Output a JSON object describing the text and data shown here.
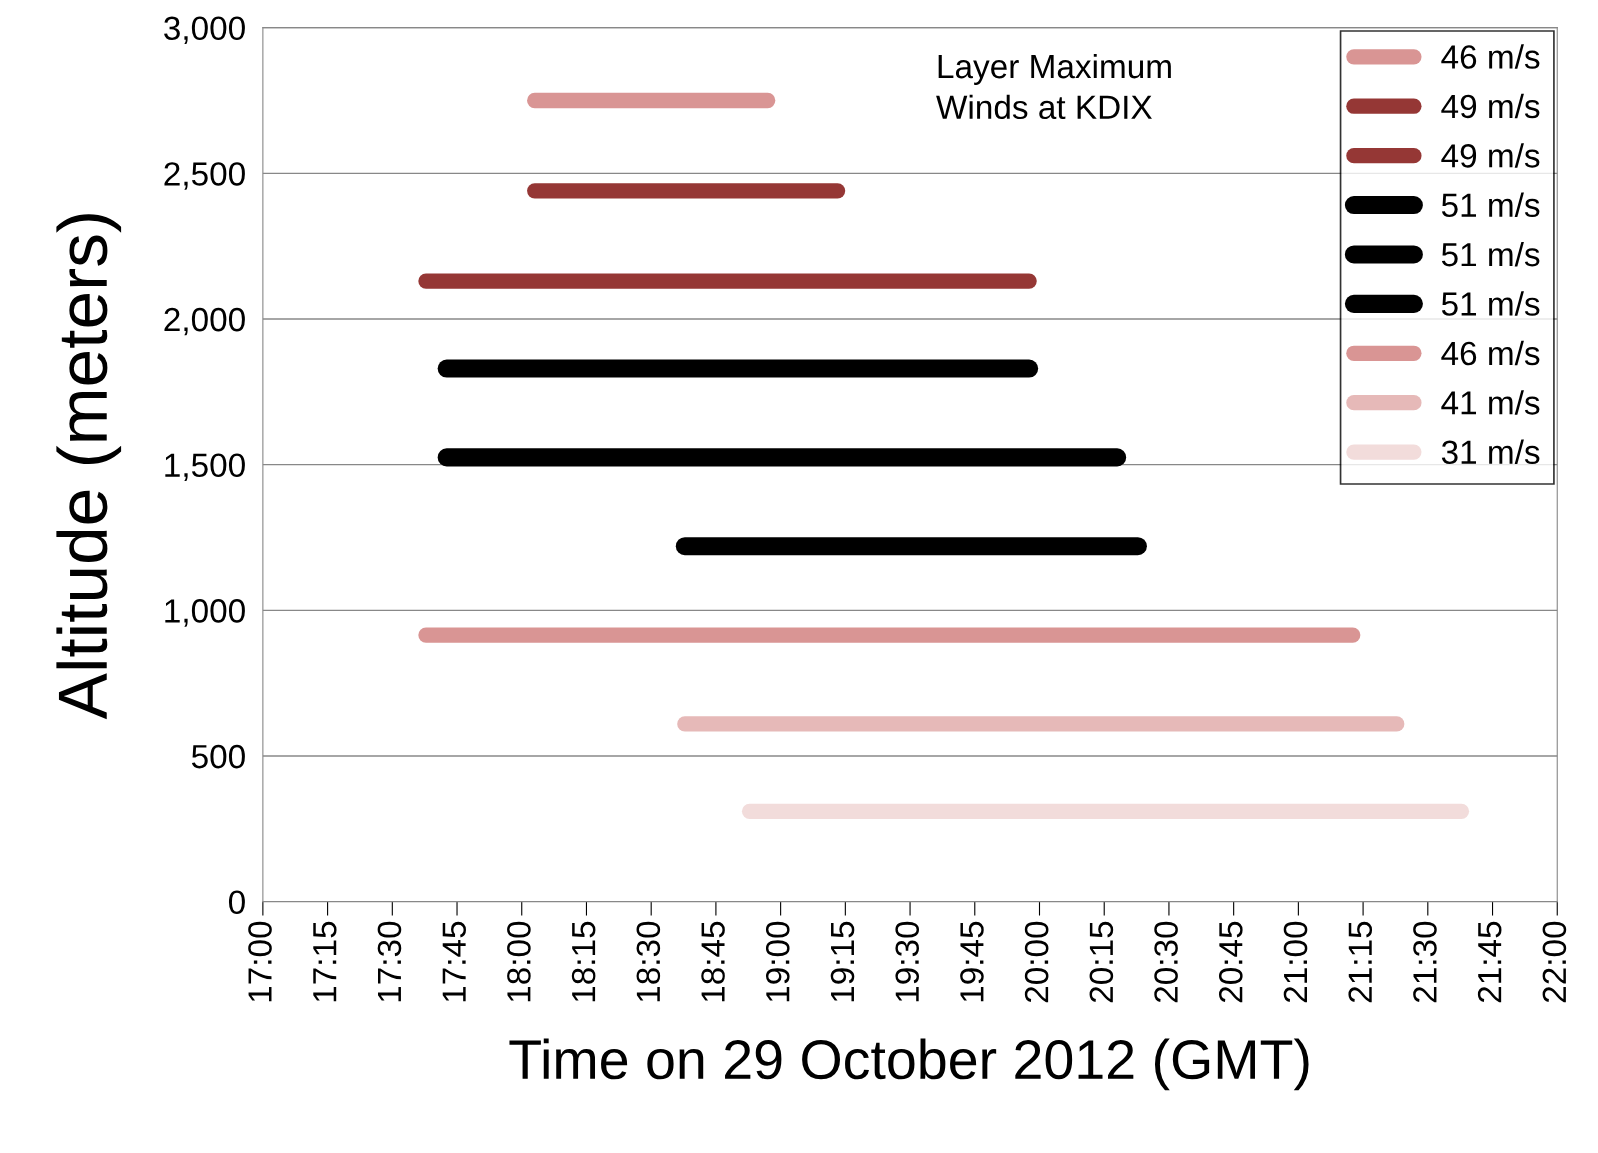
{
  "chart_data": {
    "type": "line",
    "xlabel": "Time on 29 October 2012 (GMT)",
    "ylabel": "Altitude (meters)",
    "annotations": [
      "Layer Maximum\nWinds at KDIX"
    ],
    "xlim": [
      17,
      22
    ],
    "xticks": [
      {
        "value": 17,
        "label": "17:00"
      },
      {
        "value": 17.25,
        "label": "17:15"
      },
      {
        "value": 17.5,
        "label": "17:30"
      },
      {
        "value": 17.75,
        "label": "17:45"
      },
      {
        "value": 18,
        "label": "18:00"
      },
      {
        "value": 18.25,
        "label": "18:15"
      },
      {
        "value": 18.5,
        "label": "18:30"
      },
      {
        "value": 18.75,
        "label": "18:45"
      },
      {
        "value": 19,
        "label": "19:00"
      },
      {
        "value": 19.25,
        "label": "19:15"
      },
      {
        "value": 19.5,
        "label": "19:30"
      },
      {
        "value": 19.75,
        "label": "19:45"
      },
      {
        "value": 20,
        "label": "20:00"
      },
      {
        "value": 20.25,
        "label": "20:15"
      },
      {
        "value": 20.5,
        "label": "20:30"
      },
      {
        "value": 20.75,
        "label": "20:45"
      },
      {
        "value": 21,
        "label": "21:00"
      },
      {
        "value": 21.25,
        "label": "21:15"
      },
      {
        "value": 21.5,
        "label": "21:30"
      },
      {
        "value": 21.75,
        "label": "21:45"
      },
      {
        "value": 22,
        "label": "22:00"
      }
    ],
    "ylim": [
      0,
      3000
    ],
    "yticks": [
      0,
      {
        "value": 500,
        "label": "500"
      },
      {
        "value": 1000,
        "label": "1,000"
      },
      {
        "value": 1500,
        "label": "1,500"
      },
      {
        "value": 2000,
        "label": "2,000"
      },
      {
        "value": 2500,
        "label": "2,500"
      },
      {
        "value": 3000,
        "label": "3,000"
      }
    ],
    "grid": "y",
    "legend": "top right",
    "line_style": "solid",
    "series": [
      {
        "name": "46 m/s",
        "color": "#d99594",
        "x": [
          18.05,
          18.95
        ],
        "values": [
          2750,
          2750
        ]
      },
      {
        "name": "49 m/s",
        "color": "#953735",
        "x": [
          18.05,
          19.22
        ],
        "values": [
          2440,
          2440
        ]
      },
      {
        "name": "49 m/s",
        "color": "#953735",
        "x": [
          17.63,
          19.96
        ],
        "values": [
          2130,
          2130
        ]
      },
      {
        "name": "51 m/s",
        "color": "#000000",
        "x": [
          17.71,
          19.96
        ],
        "values": [
          1830,
          1830
        ]
      },
      {
        "name": "51 m/s",
        "color": "#000000",
        "x": [
          17.71,
          20.3
        ],
        "values": [
          1525,
          1525
        ]
      },
      {
        "name": "51 m/s",
        "color": "#000000",
        "x": [
          18.63,
          20.38
        ],
        "values": [
          1220,
          1220
        ]
      },
      {
        "name": "46 m/s",
        "color": "#d99594",
        "x": [
          17.63,
          21.21
        ],
        "values": [
          915,
          915
        ]
      },
      {
        "name": "41 m/s",
        "color": "#e6b9b8",
        "x": [
          18.63,
          21.38
        ],
        "values": [
          610,
          610
        ]
      },
      {
        "name": "31 m/s",
        "color": "#f2dcdb",
        "x": [
          18.88,
          21.63
        ],
        "values": [
          310,
          310
        ]
      }
    ]
  }
}
